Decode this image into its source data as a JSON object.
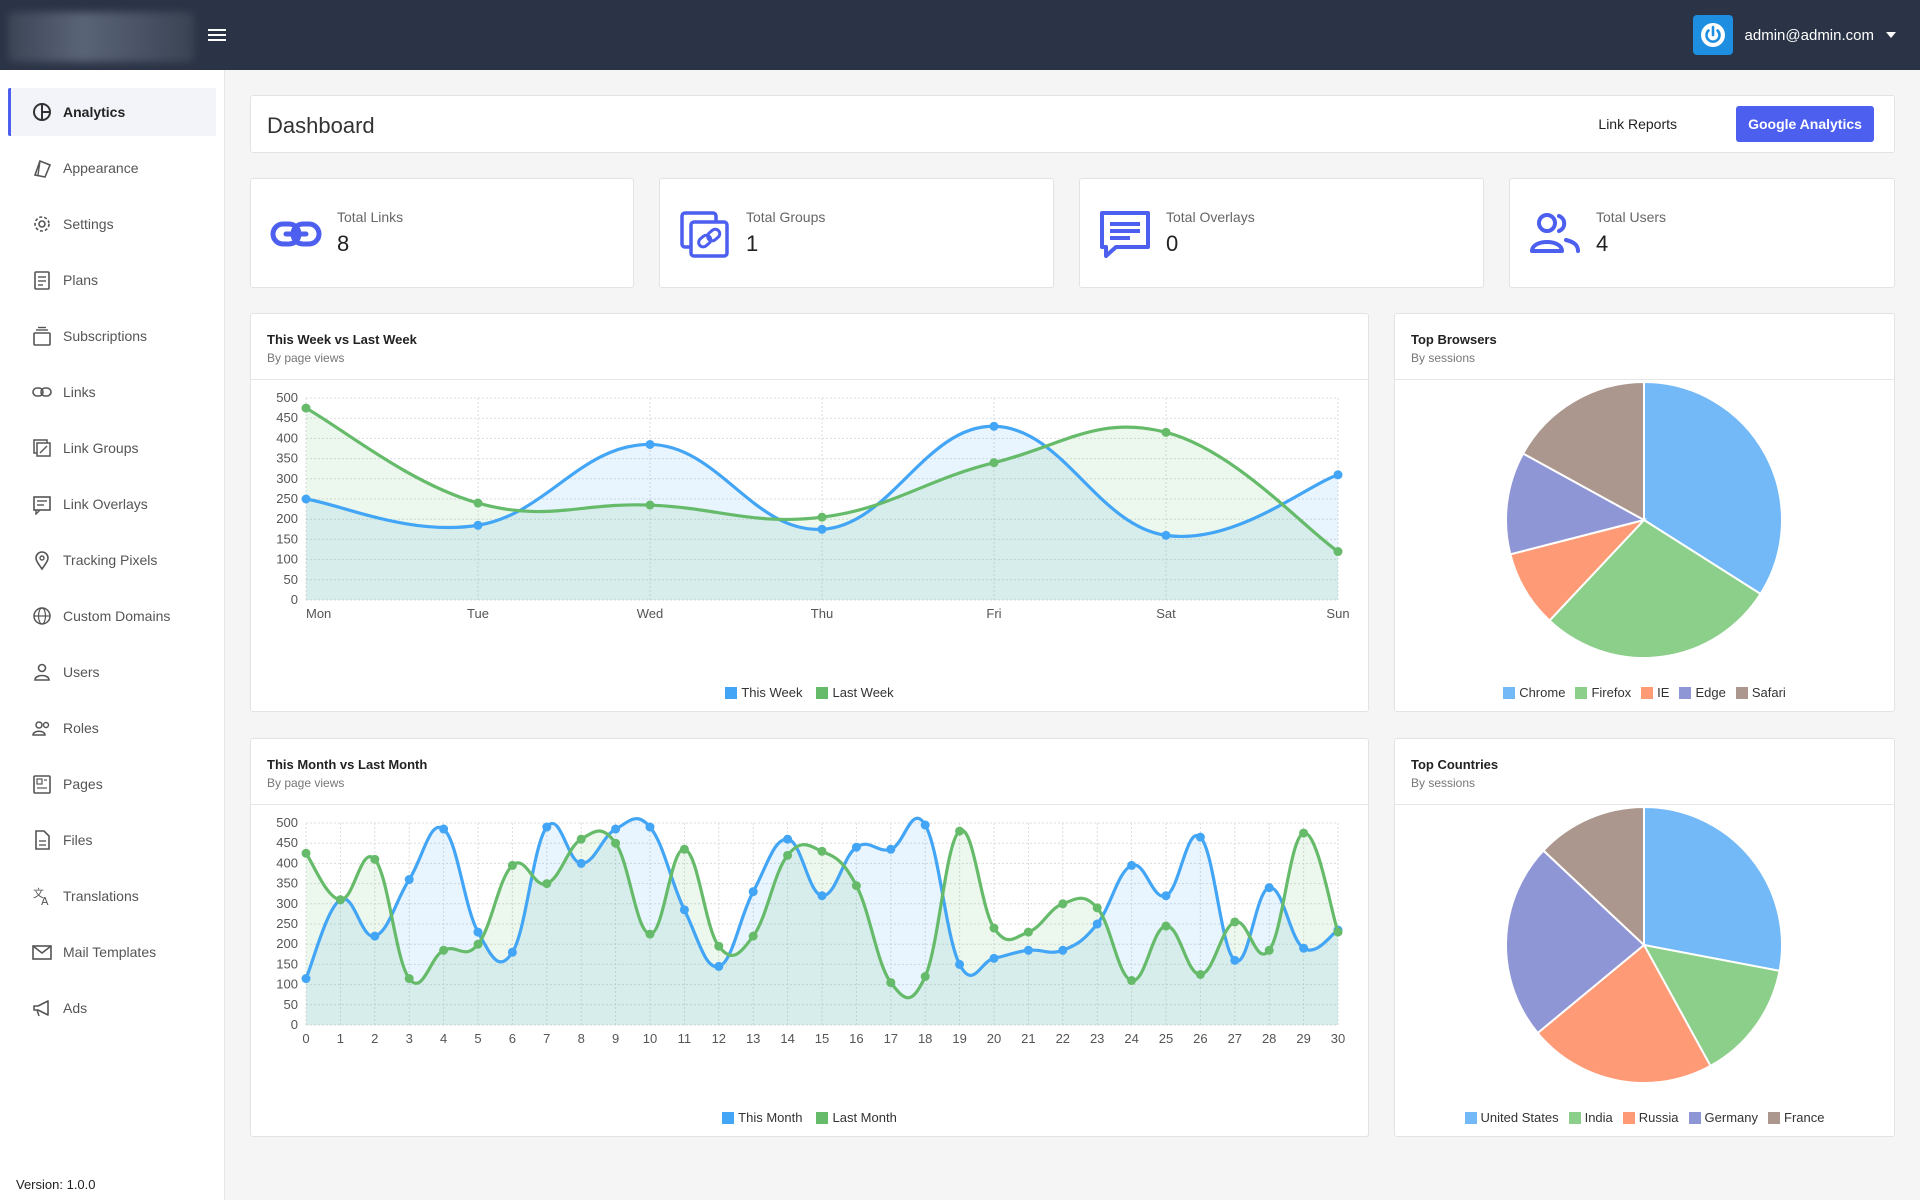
{
  "topbar": {
    "user_email": "admin@admin.com"
  },
  "sidebar": {
    "items": [
      {
        "label": "Analytics",
        "icon": "analytics-icon",
        "active": true
      },
      {
        "label": "Appearance",
        "icon": "appearance-icon"
      },
      {
        "label": "Settings",
        "icon": "gear-icon"
      },
      {
        "label": "Plans",
        "icon": "plans-icon"
      },
      {
        "label": "Subscriptions",
        "icon": "subscriptions-icon"
      },
      {
        "label": "Links",
        "icon": "link-icon"
      },
      {
        "label": "Link Groups",
        "icon": "link-groups-icon"
      },
      {
        "label": "Link Overlays",
        "icon": "link-overlays-icon"
      },
      {
        "label": "Tracking Pixels",
        "icon": "map-pin-icon"
      },
      {
        "label": "Custom Domains",
        "icon": "globe-icon"
      },
      {
        "label": "Users",
        "icon": "user-icon"
      },
      {
        "label": "Roles",
        "icon": "roles-icon"
      },
      {
        "label": "Pages",
        "icon": "pages-icon"
      },
      {
        "label": "Files",
        "icon": "file-icon"
      },
      {
        "label": "Translations",
        "icon": "translate-icon"
      },
      {
        "label": "Mail Templates",
        "icon": "mail-icon"
      },
      {
        "label": "Ads",
        "icon": "megaphone-icon"
      }
    ],
    "version": "Version: 1.0.0"
  },
  "header": {
    "title": "Dashboard",
    "link_reports": "Link Reports",
    "google_analytics": "Google Analytics"
  },
  "stats": [
    {
      "label": "Total Links",
      "value": "8",
      "icon": "link-icon"
    },
    {
      "label": "Total Groups",
      "value": "1",
      "icon": "link-groups-icon"
    },
    {
      "label": "Total Overlays",
      "value": "0",
      "icon": "comment-icon"
    },
    {
      "label": "Total Users",
      "value": "4",
      "icon": "users-icon"
    }
  ],
  "panels": {
    "week": {
      "title": "This Week vs Last Week",
      "subtitle": "By page views"
    },
    "browsers": {
      "title": "Top Browsers",
      "subtitle": "By sessions"
    },
    "month": {
      "title": "This Month vs Last Month",
      "subtitle": "By page views"
    },
    "countries": {
      "title": "Top Countries",
      "subtitle": "By sessions"
    }
  },
  "colors": {
    "accent": "#4c5fef",
    "blue": "#42a5f5",
    "green": "#66bb6a",
    "pie": [
      "#74b9f7",
      "#8ccf8a",
      "#ff9a76",
      "#8f96d6",
      "#ab978d"
    ]
  },
  "chart_data": [
    {
      "type": "line",
      "categories": [
        "Mon",
        "Tue",
        "Wed",
        "Thu",
        "Fri",
        "Sat",
        "Sun"
      ],
      "ylim": [
        0,
        500
      ],
      "yticks": [
        0,
        50,
        100,
        150,
        200,
        250,
        300,
        350,
        400,
        450,
        500
      ],
      "series": [
        {
          "name": "This Week",
          "color": "#42a5f5",
          "values": [
            250,
            185,
            385,
            175,
            430,
            160,
            310
          ]
        },
        {
          "name": "Last Week",
          "color": "#66bb6a",
          "values": [
            475,
            240,
            235,
            205,
            340,
            415,
            120
          ]
        }
      ]
    },
    {
      "type": "pie",
      "labels": [
        "Chrome",
        "Firefox",
        "IE",
        "Edge",
        "Safari"
      ],
      "values": [
        34,
        28,
        9,
        12,
        17
      ],
      "colors": [
        "#74b9f7",
        "#8ccf8a",
        "#ff9a76",
        "#8f96d6",
        "#ab978d"
      ]
    },
    {
      "type": "line",
      "categories": [
        "0",
        "1",
        "2",
        "3",
        "4",
        "5",
        "6",
        "7",
        "8",
        "9",
        "10",
        "11",
        "12",
        "13",
        "14",
        "15",
        "16",
        "17",
        "18",
        "19",
        "20",
        "21",
        "22",
        "23",
        "24",
        "25",
        "26",
        "27",
        "28",
        "29",
        "30"
      ],
      "ylim": [
        0,
        500
      ],
      "yticks": [
        0,
        50,
        100,
        150,
        200,
        250,
        300,
        350,
        400,
        450,
        500
      ],
      "series": [
        {
          "name": "This Month",
          "color": "#42a5f5",
          "values": [
            115,
            310,
            220,
            360,
            485,
            230,
            180,
            490,
            400,
            485,
            490,
            285,
            145,
            330,
            460,
            320,
            440,
            435,
            495,
            150,
            165,
            185,
            185,
            250,
            395,
            320,
            465,
            160,
            340,
            190,
            235
          ]
        },
        {
          "name": "Last Month",
          "color": "#66bb6a",
          "values": [
            425,
            310,
            410,
            115,
            185,
            200,
            395,
            350,
            460,
            450,
            225,
            435,
            195,
            220,
            420,
            430,
            345,
            105,
            120,
            480,
            240,
            230,
            300,
            290,
            110,
            245,
            125,
            255,
            185,
            475,
            230
          ]
        }
      ]
    },
    {
      "type": "pie",
      "labels": [
        "United States",
        "India",
        "Russia",
        "Germany",
        "France"
      ],
      "values": [
        28,
        14,
        22,
        23,
        13
      ],
      "colors": [
        "#74b9f7",
        "#8ccf8a",
        "#ff9a76",
        "#8f96d6",
        "#ab978d"
      ]
    }
  ]
}
